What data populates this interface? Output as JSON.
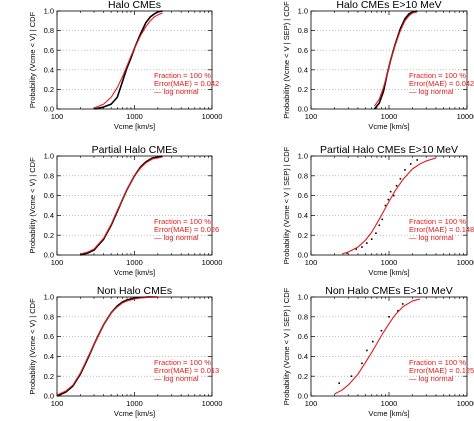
{
  "chart_data": [
    {
      "type": "line",
      "title": "Halo CMEs",
      "xlabel": "Vcme [km/s]",
      "ylabel": "Probability (Vcme < V) | CDF",
      "x_scale": "log",
      "xlim": [
        100,
        10000
      ],
      "ylim": [
        0,
        1
      ],
      "x_ticks": [
        "100",
        "1000",
        "10000"
      ],
      "y_ticks": [
        "0.0",
        "0.2",
        "0.4",
        "0.6",
        "0.8",
        "1.0"
      ],
      "legend_placement": "bottom-right",
      "annotations": [
        "Fraction = 100 %",
        "Error(MAE) = 0.042",
        "— log normal"
      ],
      "series": [
        {
          "name": "empirical",
          "style": "line",
          "color": "#000000",
          "x": [
            300,
            400,
            500,
            600,
            700,
            800,
            900,
            1000,
            1200,
            1400,
            1600,
            1800,
            2000,
            2300
          ],
          "y": [
            0.0,
            0.02,
            0.05,
            0.12,
            0.28,
            0.42,
            0.52,
            0.62,
            0.77,
            0.88,
            0.94,
            0.97,
            0.99,
            1.0
          ]
        },
        {
          "name": "log normal",
          "style": "line",
          "color": "#e41a1c",
          "x": [
            300,
            400,
            500,
            600,
            700,
            800,
            900,
            1000,
            1200,
            1400,
            1600,
            1800,
            2000,
            2300
          ],
          "y": [
            0.01,
            0.05,
            0.12,
            0.22,
            0.33,
            0.44,
            0.54,
            0.62,
            0.75,
            0.84,
            0.9,
            0.94,
            0.96,
            0.98
          ]
        }
      ]
    },
    {
      "type": "line",
      "title": "Halo CMEs E>10 MeV",
      "xlabel": "Vcme [km/s]",
      "ylabel": "Probability (Vcme < V | SEP) | CDF",
      "x_scale": "log",
      "xlim": [
        100,
        10000
      ],
      "ylim": [
        0,
        1
      ],
      "x_ticks": [
        "100",
        "1000",
        "10000"
      ],
      "y_ticks": [
        "0.0",
        "0.2",
        "0.4",
        "0.6",
        "0.8",
        "1.0"
      ],
      "legend_placement": "bottom-right",
      "annotations": [
        "Fraction = 100 %",
        "Error(MAE) = 0.042",
        "— log normal"
      ],
      "series": [
        {
          "name": "empirical",
          "style": "line",
          "color": "#000000",
          "x": [
            650,
            750,
            850,
            950,
            1050,
            1200,
            1400,
            1600,
            1800,
            2000,
            2300
          ],
          "y": [
            0.0,
            0.06,
            0.18,
            0.36,
            0.5,
            0.66,
            0.82,
            0.92,
            0.97,
            0.99,
            1.0
          ]
        },
        {
          "name": "log normal",
          "style": "line",
          "color": "#e41a1c",
          "x": [
            650,
            750,
            850,
            950,
            1050,
            1200,
            1400,
            1600,
            1800,
            2000,
            2300
          ],
          "y": [
            0.03,
            0.1,
            0.22,
            0.36,
            0.5,
            0.65,
            0.8,
            0.9,
            0.95,
            0.98,
            0.99
          ]
        }
      ]
    },
    {
      "type": "line",
      "title": "Partial Halo CMEs",
      "xlabel": "Vcme [km/s]",
      "ylabel": "Probability (Vcme < V) | CDF",
      "x_scale": "log",
      "xlim": [
        100,
        10000
      ],
      "ylim": [
        0,
        1
      ],
      "x_ticks": [
        "100",
        "1000",
        "10000"
      ],
      "y_ticks": [
        "0.0",
        "0.2",
        "0.4",
        "0.6",
        "0.8",
        "1.0"
      ],
      "legend_placement": "bottom-right",
      "annotations": [
        "Fraction = 100 %",
        "Error(MAE) = 0.026",
        "— log normal"
      ],
      "series": [
        {
          "name": "empirical",
          "style": "line",
          "color": "#000000",
          "x": [
            200,
            250,
            300,
            400,
            500,
            600,
            700,
            800,
            1000,
            1200,
            1400,
            1700,
            2000,
            2300
          ],
          "y": [
            0.0,
            0.02,
            0.05,
            0.16,
            0.3,
            0.44,
            0.56,
            0.66,
            0.8,
            0.89,
            0.94,
            0.98,
            0.99,
            1.0
          ]
        },
        {
          "name": "log normal",
          "style": "line",
          "color": "#e41a1c",
          "x": [
            200,
            250,
            300,
            400,
            500,
            600,
            700,
            800,
            1000,
            1200,
            1400,
            1700,
            2000,
            2300
          ],
          "y": [
            0.01,
            0.03,
            0.06,
            0.17,
            0.31,
            0.45,
            0.56,
            0.66,
            0.8,
            0.88,
            0.93,
            0.97,
            0.98,
            0.99
          ]
        }
      ]
    },
    {
      "type": "line",
      "title": "Partial Halo CMEs E>10 MeV",
      "xlabel": "Vcme [km/s]",
      "ylabel": "Probability (Vcme < V | SEP) | CDF",
      "x_scale": "log",
      "xlim": [
        100,
        10000
      ],
      "ylim": [
        0,
        1
      ],
      "x_ticks": [
        "100",
        "1000",
        "10000"
      ],
      "y_ticks": [
        "0.0",
        "0.2",
        "0.4",
        "0.6",
        "0.8",
        "1.0"
      ],
      "legend_placement": "bottom-right",
      "annotations": [
        "Fraction = 100 %",
        "Error(MAE) = 0.148",
        "— log normal"
      ],
      "series": [
        {
          "name": "empirical",
          "style": "points",
          "color": "#000000",
          "x": [
            290,
            380,
            450,
            520,
            600,
            680,
            750,
            820,
            900,
            980,
            1050,
            1150,
            1250,
            1400,
            1600,
            1900,
            2300
          ],
          "y": [
            0.02,
            0.06,
            0.08,
            0.12,
            0.16,
            0.22,
            0.3,
            0.36,
            0.5,
            0.56,
            0.64,
            0.6,
            0.7,
            0.77,
            0.86,
            0.92,
            0.96
          ]
        },
        {
          "name": "log normal",
          "style": "line",
          "color": "#e41a1c",
          "x": [
            250,
            300,
            400,
            500,
            600,
            700,
            800,
            1000,
            1200,
            1500,
            2000,
            2500,
            3000,
            4000
          ],
          "y": [
            0.01,
            0.03,
            0.08,
            0.15,
            0.23,
            0.32,
            0.4,
            0.54,
            0.65,
            0.76,
            0.87,
            0.92,
            0.95,
            0.98
          ]
        }
      ]
    },
    {
      "type": "line",
      "title": "Non Halo CMEs",
      "xlabel": "Vcme [km/s]",
      "ylabel": "Probability (Vcme < V) | CDF",
      "x_scale": "log",
      "xlim": [
        100,
        10000
      ],
      "ylim": [
        0,
        1
      ],
      "x_ticks": [
        "100",
        "1000",
        "10000"
      ],
      "y_ticks": [
        "0.0",
        "0.2",
        "0.4",
        "0.6",
        "0.8",
        "1.0"
      ],
      "legend_placement": "bottom-right",
      "annotations": [
        "Fraction = 100 %",
        "Error(MAE) = 0.013",
        "— log normal"
      ],
      "series": [
        {
          "name": "empirical",
          "style": "line",
          "color": "#000000",
          "x": [
            100,
            130,
            160,
            200,
            250,
            300,
            350,
            400,
            500,
            600,
            700,
            800,
            1000,
            1200,
            1500,
            2000
          ],
          "y": [
            0.0,
            0.04,
            0.1,
            0.22,
            0.38,
            0.52,
            0.63,
            0.72,
            0.84,
            0.91,
            0.95,
            0.97,
            0.99,
            0.995,
            1.0,
            1.0
          ]
        },
        {
          "name": "log normal",
          "style": "line",
          "color": "#e41a1c",
          "x": [
            100,
            130,
            160,
            200,
            250,
            300,
            350,
            400,
            500,
            600,
            700,
            800,
            1000,
            1200,
            1500,
            2000
          ],
          "y": [
            0.01,
            0.05,
            0.11,
            0.23,
            0.39,
            0.52,
            0.63,
            0.72,
            0.84,
            0.9,
            0.94,
            0.96,
            0.98,
            0.99,
            0.995,
            1.0
          ]
        }
      ]
    },
    {
      "type": "line",
      "title": "Non Halo CMEs E>10 MeV",
      "xlabel": "Vcme [km/s]",
      "ylabel": "Probability (Vcme < V | SEP) | CDF",
      "x_scale": "log",
      "xlim": [
        100,
        10000
      ],
      "ylim": [
        0,
        1
      ],
      "x_ticks": [
        "100",
        "1000",
        "10000"
      ],
      "y_ticks": [
        "0.0",
        "0.2",
        "0.4",
        "0.6",
        "0.8",
        "1.0"
      ],
      "legend_placement": "bottom-right",
      "annotations": [
        "Fraction = 100 %",
        "Error(MAE) = 0.125",
        "— log normal"
      ],
      "series": [
        {
          "name": "empirical",
          "style": "points",
          "color": "#000000",
          "x": [
            230,
            330,
            450,
            520,
            620,
            800,
            1000,
            1300,
            1500
          ],
          "y": [
            0.13,
            0.2,
            0.33,
            0.46,
            0.55,
            0.66,
            0.8,
            0.86,
            0.93
          ]
        },
        {
          "name": "log normal",
          "style": "line",
          "color": "#e41a1c",
          "x": [
            200,
            250,
            300,
            400,
            500,
            600,
            700,
            800,
            1000,
            1200,
            1500,
            2000,
            2500
          ],
          "y": [
            0.02,
            0.06,
            0.11,
            0.22,
            0.34,
            0.44,
            0.53,
            0.61,
            0.73,
            0.82,
            0.9,
            0.96,
            0.98
          ]
        }
      ]
    }
  ]
}
